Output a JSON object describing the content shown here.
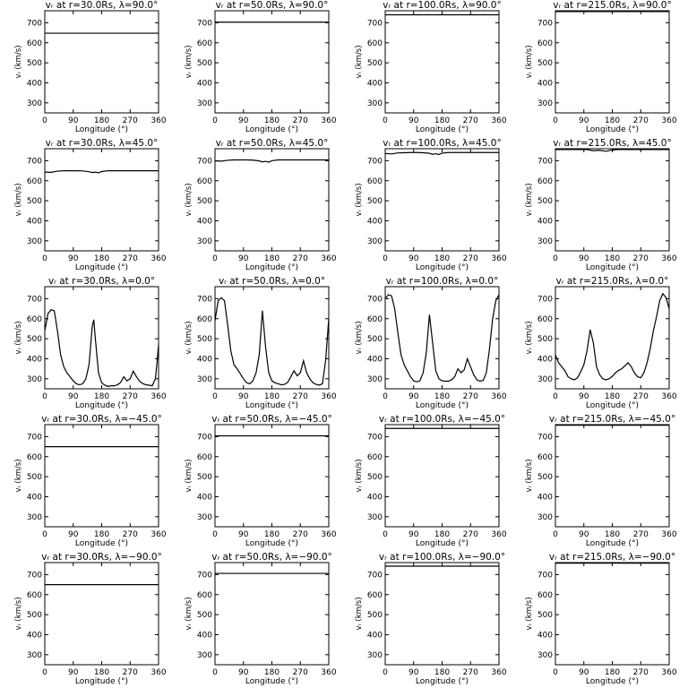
{
  "chart_data": [
    {
      "type": "line",
      "title": "vᵣ at r=30.0Rs, λ=90.0°",
      "xlabel": "Longitude (°)",
      "ylabel": "vᵣ (km/s)",
      "xlim": [
        0,
        360
      ],
      "ylim": [
        250,
        760
      ],
      "xticks": [
        0,
        90,
        180,
        270,
        360
      ],
      "yticks": [
        300,
        400,
        500,
        600,
        700
      ],
      "x": [
        0,
        360
      ],
      "y": [
        648,
        648
      ]
    },
    {
      "type": "line",
      "title": "vᵣ at r=50.0Rs, λ=90.0°",
      "xlabel": "Longitude (°)",
      "ylabel": "vᵣ (km/s)",
      "xlim": [
        0,
        360
      ],
      "ylim": [
        250,
        760
      ],
      "xticks": [
        0,
        90,
        180,
        270,
        360
      ],
      "yticks": [
        300,
        400,
        500,
        600,
        700
      ],
      "x": [
        0,
        360
      ],
      "y": [
        703,
        703
      ]
    },
    {
      "type": "line",
      "title": "vᵣ at r=100.0Rs, λ=90.0°",
      "xlabel": "Longitude (°)",
      "ylabel": "vᵣ (km/s)",
      "xlim": [
        0,
        360
      ],
      "ylim": [
        250,
        760
      ],
      "xticks": [
        0,
        90,
        180,
        270,
        360
      ],
      "yticks": [
        300,
        400,
        500,
        600,
        700
      ],
      "x": [
        0,
        360
      ],
      "y": [
        740,
        740
      ]
    },
    {
      "type": "line",
      "title": "vᵣ at r=215.0Rs, λ=90.0°",
      "xlabel": "Longitude (°)",
      "ylabel": "vᵣ (km/s)",
      "xlim": [
        0,
        360
      ],
      "ylim": [
        250,
        760
      ],
      "xticks": [
        0,
        90,
        180,
        270,
        360
      ],
      "yticks": [
        300,
        400,
        500,
        600,
        700
      ],
      "x": [
        0,
        360
      ],
      "y": [
        756,
        756
      ]
    },
    {
      "type": "line",
      "title": "vᵣ at r=30.0Rs, λ=45.0°",
      "xlabel": "Longitude (°)",
      "ylabel": "vᵣ (km/s)",
      "xlim": [
        0,
        360
      ],
      "ylim": [
        250,
        760
      ],
      "xticks": [
        0,
        90,
        180,
        270,
        360
      ],
      "yticks": [
        300,
        400,
        500,
        600,
        700
      ],
      "x": [
        0,
        20,
        40,
        60,
        80,
        100,
        120,
        140,
        150,
        160,
        170,
        180,
        200,
        220,
        240,
        260,
        280,
        300,
        320,
        340,
        360
      ],
      "y": [
        643,
        642,
        648,
        650,
        650,
        650,
        649,
        645,
        641,
        643,
        640,
        646,
        650,
        650,
        650,
        650,
        650,
        650,
        650,
        650,
        650
      ]
    },
    {
      "type": "line",
      "title": "vᵣ at r=50.0Rs, λ=45.0°",
      "xlabel": "Longitude (°)",
      "ylabel": "vᵣ (km/s)",
      "xlim": [
        0,
        360
      ],
      "ylim": [
        250,
        760
      ],
      "xticks": [
        0,
        90,
        180,
        270,
        360
      ],
      "yticks": [
        300,
        400,
        500,
        600,
        700
      ],
      "x": [
        0,
        20,
        40,
        60,
        80,
        100,
        120,
        140,
        150,
        160,
        170,
        180,
        200,
        220,
        240,
        260,
        280,
        300,
        320,
        340,
        360
      ],
      "y": [
        699,
        698,
        702,
        704,
        704,
        704,
        703,
        699,
        694,
        697,
        693,
        700,
        704,
        704,
        704,
        704,
        704,
        704,
        704,
        704,
        704
      ]
    },
    {
      "type": "line",
      "title": "vᵣ at r=100.0Rs, λ=45.0°",
      "xlabel": "Longitude (°)",
      "ylabel": "vᵣ (km/s)",
      "xlim": [
        0,
        360
      ],
      "ylim": [
        250,
        760
      ],
      "xticks": [
        0,
        90,
        180,
        270,
        360
      ],
      "yticks": [
        300,
        400,
        500,
        600,
        700
      ],
      "x": [
        0,
        20,
        40,
        60,
        80,
        100,
        120,
        140,
        150,
        160,
        170,
        180,
        200,
        220,
        240,
        260,
        280,
        300,
        320,
        340,
        360
      ],
      "y": [
        736,
        734,
        739,
        740,
        741,
        741,
        740,
        737,
        732,
        735,
        731,
        738,
        741,
        741,
        741,
        741,
        741,
        741,
        741,
        741,
        741
      ]
    },
    {
      "type": "line",
      "title": "vᵣ at r=215.0Rs, λ=45.0°",
      "xlabel": "Longitude (°)",
      "ylabel": "vᵣ (km/s)",
      "xlim": [
        0,
        360
      ],
      "ylim": [
        250,
        760
      ],
      "xticks": [
        0,
        90,
        180,
        270,
        360
      ],
      "yticks": [
        300,
        400,
        500,
        600,
        700
      ],
      "x": [
        0,
        60,
        100,
        120,
        140,
        160,
        180,
        200,
        240,
        280,
        320,
        360
      ],
      "y": [
        756,
        756,
        756,
        750,
        752,
        747,
        754,
        756,
        756,
        756,
        756,
        756
      ]
    },
    {
      "type": "line",
      "title": "vᵣ at r=30.0Rs, λ=0.0°",
      "xlabel": "Longitude (°)",
      "ylabel": "vᵣ (km/s)",
      "xlim": [
        0,
        360
      ],
      "ylim": [
        250,
        760
      ],
      "xticks": [
        0,
        90,
        180,
        270,
        360
      ],
      "yticks": [
        300,
        400,
        500,
        600,
        700
      ],
      "x": [
        0,
        10,
        20,
        30,
        40,
        50,
        60,
        70,
        80,
        90,
        100,
        110,
        120,
        130,
        140,
        150,
        155,
        160,
        170,
        180,
        190,
        200,
        210,
        220,
        230,
        240,
        250,
        260,
        270,
        280,
        290,
        300,
        310,
        320,
        330,
        340,
        350,
        355,
        360
      ],
      "y": [
        540,
        625,
        645,
        640,
        540,
        420,
        360,
        330,
        310,
        290,
        275,
        270,
        275,
        300,
        370,
        560,
        595,
        500,
        330,
        280,
        268,
        262,
        265,
        265,
        270,
        282,
        310,
        290,
        300,
        338,
        310,
        288,
        276,
        270,
        268,
        265,
        300,
        380,
        470
      ]
    },
    {
      "type": "line",
      "title": "vᵣ at r=50.0Rs, λ=0.0°",
      "xlabel": "Longitude (°)",
      "ylabel": "vᵣ (km/s)",
      "xlim": [
        0,
        360
      ],
      "ylim": [
        250,
        760
      ],
      "xticks": [
        0,
        90,
        180,
        270,
        360
      ],
      "yticks": [
        300,
        400,
        500,
        600,
        700
      ],
      "x": [
        0,
        10,
        20,
        30,
        40,
        50,
        60,
        70,
        80,
        90,
        100,
        110,
        120,
        130,
        140,
        150,
        160,
        170,
        180,
        190,
        200,
        210,
        220,
        230,
        240,
        250,
        260,
        270,
        280,
        290,
        300,
        310,
        320,
        330,
        340,
        350,
        360
      ],
      "y": [
        590,
        690,
        705,
        690,
        570,
        440,
        370,
        350,
        325,
        300,
        280,
        275,
        290,
        330,
        420,
        640,
        460,
        330,
        290,
        280,
        275,
        270,
        272,
        282,
        310,
        340,
        315,
        330,
        390,
        330,
        300,
        280,
        272,
        268,
        275,
        390,
        600
      ]
    },
    {
      "type": "line",
      "title": "vᵣ at r=100.0Rs, λ=0.0°",
      "xlabel": "Longitude (°)",
      "ylabel": "vᵣ (km/s)",
      "xlim": [
        0,
        360
      ],
      "ylim": [
        250,
        760
      ],
      "xticks": [
        0,
        90,
        180,
        270,
        360
      ],
      "yticks": [
        300,
        400,
        500,
        600,
        700
      ],
      "x": [
        0,
        10,
        20,
        30,
        40,
        50,
        60,
        70,
        80,
        90,
        100,
        110,
        120,
        130,
        140,
        150,
        160,
        170,
        180,
        190,
        200,
        210,
        220,
        230,
        240,
        250,
        260,
        270,
        280,
        290,
        300,
        310,
        320,
        330,
        340,
        350,
        360
      ],
      "y": [
        700,
        720,
        715,
        650,
        530,
        420,
        370,
        340,
        310,
        290,
        285,
        290,
        330,
        430,
        620,
        480,
        340,
        300,
        290,
        288,
        288,
        295,
        310,
        350,
        330,
        345,
        400,
        360,
        320,
        295,
        288,
        292,
        330,
        450,
        600,
        690,
        720
      ]
    },
    {
      "type": "line",
      "title": "vᵣ at r=215.0Rs, λ=0.0°",
      "xlabel": "Longitude (°)",
      "ylabel": "vᵣ (km/s)",
      "xlim": [
        0,
        360
      ],
      "ylim": [
        250,
        760
      ],
      "xticks": [
        0,
        90,
        180,
        270,
        360
      ],
      "yticks": [
        300,
        400,
        500,
        600,
        700
      ],
      "x": [
        0,
        10,
        20,
        30,
        40,
        50,
        60,
        70,
        80,
        90,
        100,
        110,
        120,
        130,
        140,
        150,
        160,
        170,
        180,
        190,
        200,
        210,
        220,
        230,
        240,
        250,
        260,
        270,
        280,
        290,
        300,
        310,
        320,
        330,
        340,
        350,
        360
      ],
      "y": [
        420,
        380,
        360,
        340,
        310,
        300,
        295,
        305,
        335,
        370,
        440,
        545,
        480,
        360,
        320,
        300,
        295,
        300,
        312,
        330,
        342,
        350,
        365,
        380,
        360,
        330,
        310,
        305,
        330,
        380,
        450,
        540,
        610,
        690,
        725,
        705,
        650
      ]
    },
    {
      "type": "line",
      "title": "vᵣ at r=30.0Rs, λ=−45.0°",
      "xlabel": "Longitude (°)",
      "ylabel": "vᵣ (km/s)",
      "xlim": [
        0,
        360
      ],
      "ylim": [
        250,
        760
      ],
      "xticks": [
        0,
        90,
        180,
        270,
        360
      ],
      "yticks": [
        300,
        400,
        500,
        600,
        700
      ],
      "x": [
        0,
        360
      ],
      "y": [
        650,
        650
      ]
    },
    {
      "type": "line",
      "title": "vᵣ at r=50.0Rs, λ=−45.0°",
      "xlabel": "Longitude (°)",
      "ylabel": "vᵣ (km/s)",
      "xlim": [
        0,
        360
      ],
      "ylim": [
        250,
        760
      ],
      "xticks": [
        0,
        90,
        180,
        270,
        360
      ],
      "yticks": [
        300,
        400,
        500,
        600,
        700
      ],
      "x": [
        0,
        360
      ],
      "y": [
        704,
        704
      ]
    },
    {
      "type": "line",
      "title": "vᵣ at r=100.0Rs, λ=−45.0°",
      "xlabel": "Longitude (°)",
      "ylabel": "vᵣ (km/s)",
      "xlim": [
        0,
        360
      ],
      "ylim": [
        250,
        760
      ],
      "xticks": [
        0,
        90,
        180,
        270,
        360
      ],
      "yticks": [
        300,
        400,
        500,
        600,
        700
      ],
      "x": [
        0,
        360
      ],
      "y": [
        741,
        741
      ]
    },
    {
      "type": "line",
      "title": "vᵣ at r=215.0Rs, λ=−45.0°",
      "xlabel": "Longitude (°)",
      "ylabel": "vᵣ (km/s)",
      "xlim": [
        0,
        360
      ],
      "ylim": [
        250,
        760
      ],
      "xticks": [
        0,
        90,
        180,
        270,
        360
      ],
      "yticks": [
        300,
        400,
        500,
        600,
        700
      ],
      "x": [
        0,
        360
      ],
      "y": [
        757,
        757
      ]
    },
    {
      "type": "line",
      "title": "vᵣ at r=30.0Rs, λ=−90.0°",
      "xlabel": "Longitude (°)",
      "ylabel": "vᵣ (km/s)",
      "xlim": [
        0,
        360
      ],
      "ylim": [
        250,
        760
      ],
      "xticks": [
        0,
        90,
        180,
        270,
        360
      ],
      "yticks": [
        300,
        400,
        500,
        600,
        700
      ],
      "x": [
        0,
        360
      ],
      "y": [
        650,
        650
      ]
    },
    {
      "type": "line",
      "title": "vᵣ at r=50.0Rs, λ=−90.0°",
      "xlabel": "Longitude (°)",
      "ylabel": "vᵣ (km/s)",
      "xlim": [
        0,
        360
      ],
      "ylim": [
        250,
        760
      ],
      "xticks": [
        0,
        90,
        180,
        270,
        360
      ],
      "yticks": [
        300,
        400,
        500,
        600,
        700
      ],
      "x": [
        0,
        360
      ],
      "y": [
        706,
        706
      ]
    },
    {
      "type": "line",
      "title": "vᵣ at r=100.0Rs, λ=−90.0°",
      "xlabel": "Longitude (°)",
      "ylabel": "vᵣ (km/s)",
      "xlim": [
        0,
        360
      ],
      "ylim": [
        250,
        760
      ],
      "xticks": [
        0,
        90,
        180,
        270,
        360
      ],
      "yticks": [
        300,
        400,
        500,
        600,
        700
      ],
      "x": [
        0,
        360
      ],
      "y": [
        742,
        742
      ]
    },
    {
      "type": "line",
      "title": "vᵣ at r=215.0Rs, λ=−90.0°",
      "xlabel": "Longitude (°)",
      "ylabel": "vᵣ (km/s)",
      "xlim": [
        0,
        360
      ],
      "ylim": [
        250,
        760
      ],
      "xticks": [
        0,
        90,
        180,
        270,
        360
      ],
      "yticks": [
        300,
        400,
        500,
        600,
        700
      ],
      "x": [
        0,
        360
      ],
      "y": [
        757,
        757
      ]
    }
  ]
}
